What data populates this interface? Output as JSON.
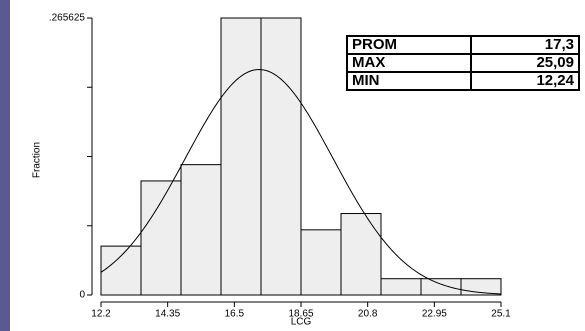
{
  "chart_data": {
    "type": "histogram",
    "xlabel": "LCG",
    "ylabel": "Fraction",
    "bins": [
      12.2,
      13.49,
      14.78,
      16.07,
      17.36,
      18.65,
      19.94,
      21.23,
      22.52,
      23.81,
      25.1
    ],
    "values": [
      0.046875,
      0.109375,
      0.125,
      0.265625,
      0.265625,
      0.0625,
      0.078125,
      0.015625,
      0.015625,
      0.015625
    ],
    "color": "#eeeeee",
    "xlim": [
      12.2,
      25.1
    ],
    "xticks": [
      12.2,
      14.35,
      16.5,
      18.65,
      20.8,
      22.95,
      25.1
    ],
    "ylim": [
      0,
      0.265625
    ],
    "yticks": [
      0,
      {
        "value": 0.265625,
        "label": ".265625"
      }
    ],
    "minor_yticks": [
      0.06640625,
      0.1328125,
      0.19921875
    ],
    "normal_curve": {
      "mean": 17.3,
      "sd": 2.38
    }
  },
  "table": {
    "rows": [
      [
        "PROM",
        "17,3"
      ],
      [
        "MAX",
        "25,09"
      ],
      [
        "MIN",
        "12,24"
      ]
    ]
  }
}
